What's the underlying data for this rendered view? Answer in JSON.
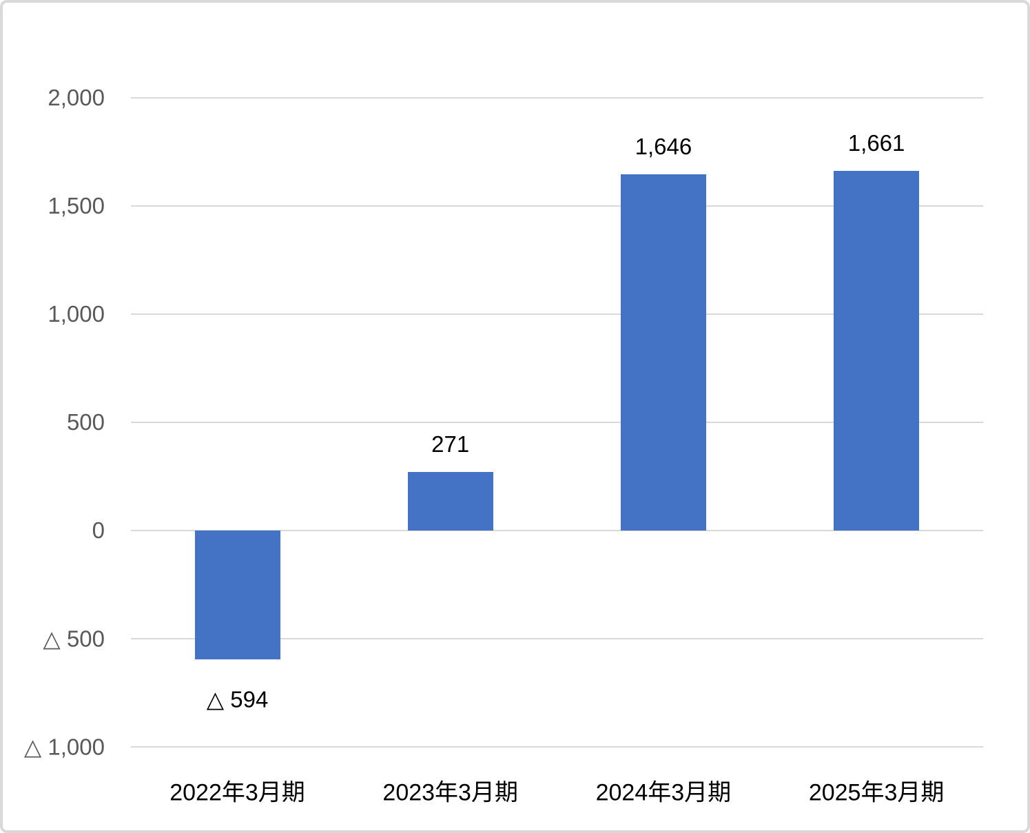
{
  "chart_data": {
    "type": "bar",
    "categories": [
      "2022年3月期",
      "2023年3月期",
      "2024年3月期",
      "2025年3月期"
    ],
    "values": [
      -594,
      271,
      1646,
      1661
    ],
    "data_labels": [
      "△ 594",
      "271",
      "1,646",
      "1,661"
    ],
    "ylim": [
      -1000,
      2000
    ],
    "y_ticks": [
      {
        "value": 2000,
        "label": "2,000"
      },
      {
        "value": 1500,
        "label": "1,500"
      },
      {
        "value": 1000,
        "label": "1,000"
      },
      {
        "value": 500,
        "label": "500"
      },
      {
        "value": 0,
        "label": "0"
      },
      {
        "value": -500,
        "label": "△ 500"
      },
      {
        "value": -1000,
        "label": "△ 1,000"
      }
    ],
    "grid": true,
    "legend": false,
    "negative_marker": "△",
    "colors": {
      "bar": "#4472c4",
      "gridline": "#d9d9d9",
      "axis_text": "#595959",
      "data_label_text": "#000000",
      "frame_border": "#d9d9d9",
      "background": "#ffffff"
    }
  }
}
